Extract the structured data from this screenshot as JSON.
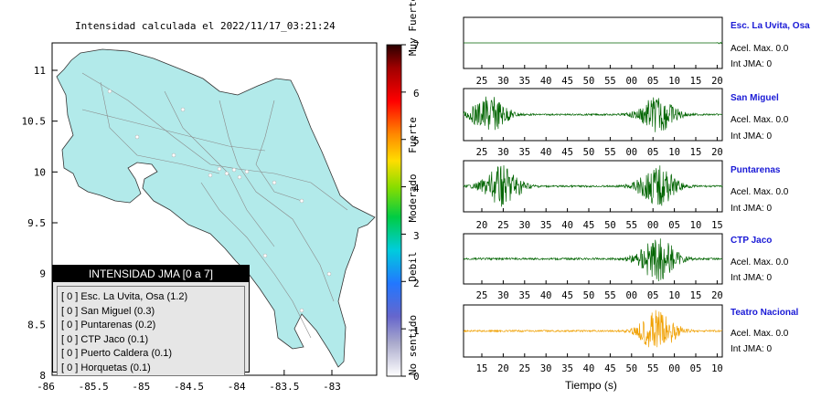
{
  "map": {
    "title": "Intensidad calculada el 2022/11/17_03:21:24",
    "x_ticks": [
      "-86",
      "-85.5",
      "-85",
      "-84.5",
      "-84",
      "-83.5",
      "-83"
    ],
    "y_ticks": [
      "11",
      "10.5",
      "10",
      "9.5",
      "9",
      "8.5",
      "8"
    ],
    "land_color": "#b2eaea"
  },
  "colorbar": {
    "ticks": [
      "7",
      "6",
      "5",
      "4",
      "3",
      "2",
      "1",
      "0"
    ],
    "labels": [
      "Muy Fuerte",
      "Fuerte",
      "Moderado",
      "Debil",
      "No sentido"
    ]
  },
  "legend": {
    "title": "INTENSIDAD JMA [0 a 7]",
    "items": [
      "[ 0 ]  Esc. La Uvita, Osa (1.2)",
      "[ 0 ]  San Miguel (0.3)",
      "[ 0 ]  Puntarenas (0.2)",
      "[ 0 ]  CTP Jaco (0.1)",
      "[ 0 ]  Puerto Caldera (0.1)",
      "[ 0 ]  Horquetas (0.1)"
    ]
  },
  "stations": [
    {
      "name": "Esc. La Uvita, Osa",
      "acc": "Acel. Max. 0.0",
      "int": "Int JMA: 0",
      "color": "#006400",
      "ticks": [
        "25",
        "30",
        "35",
        "40",
        "45",
        "50",
        "55",
        "00",
        "05",
        "10",
        "15",
        "20"
      ]
    },
    {
      "name": "San Miguel",
      "acc": "Acel. Max. 0.0",
      "int": "Int JMA: 0",
      "color": "#006400",
      "ticks": [
        "25",
        "30",
        "35",
        "40",
        "45",
        "50",
        "55",
        "00",
        "05",
        "10",
        "15",
        "20"
      ]
    },
    {
      "name": "Puntarenas",
      "acc": "Acel. Max. 0.0",
      "int": "Int JMA: 0",
      "color": "#006400",
      "ticks": [
        "20",
        "25",
        "30",
        "35",
        "40",
        "45",
        "50",
        "55",
        "00",
        "05",
        "10",
        "15"
      ]
    },
    {
      "name": "CTP Jaco",
      "acc": "Acel. Max. 0.0",
      "int": "Int JMA: 0",
      "color": "#006400",
      "ticks": [
        "25",
        "30",
        "35",
        "40",
        "45",
        "50",
        "55",
        "00",
        "05",
        "10",
        "15",
        "20"
      ]
    },
    {
      "name": "Teatro Nacional",
      "acc": "Acel. Max. 0.0",
      "int": "Int JMA: 0",
      "color": "#f0a000",
      "ticks": [
        "15",
        "20",
        "25",
        "30",
        "35",
        "40",
        "45",
        "50",
        "55",
        "00",
        "05",
        "10"
      ]
    }
  ],
  "xlabel": "Tiempo (s)",
  "chart_data": [
    {
      "type": "map",
      "title": "Intensidad calculada el 2022/11/17_03:21:24",
      "xlim": [
        -86,
        -82.6
      ],
      "ylim": [
        8,
        11.3
      ],
      "colorbar_range": [
        0,
        7
      ]
    },
    {
      "type": "line",
      "series": [
        {
          "name": "Esc. La Uvita, Osa",
          "burst_at": 0.99,
          "amplitude": 0.02
        },
        {
          "name": "San Miguel",
          "bursts": [
            0.1,
            0.75
          ],
          "amplitude": 0.35
        },
        {
          "name": "Puntarenas",
          "bursts": [
            0.15,
            0.75
          ],
          "amplitude": 0.4
        },
        {
          "name": "CTP Jaco",
          "bursts": [
            0.75
          ],
          "amplitude": 0.45
        },
        {
          "name": "Teatro Nacional",
          "bursts": [
            0.75
          ],
          "amplitude": 0.4
        }
      ]
    }
  ]
}
